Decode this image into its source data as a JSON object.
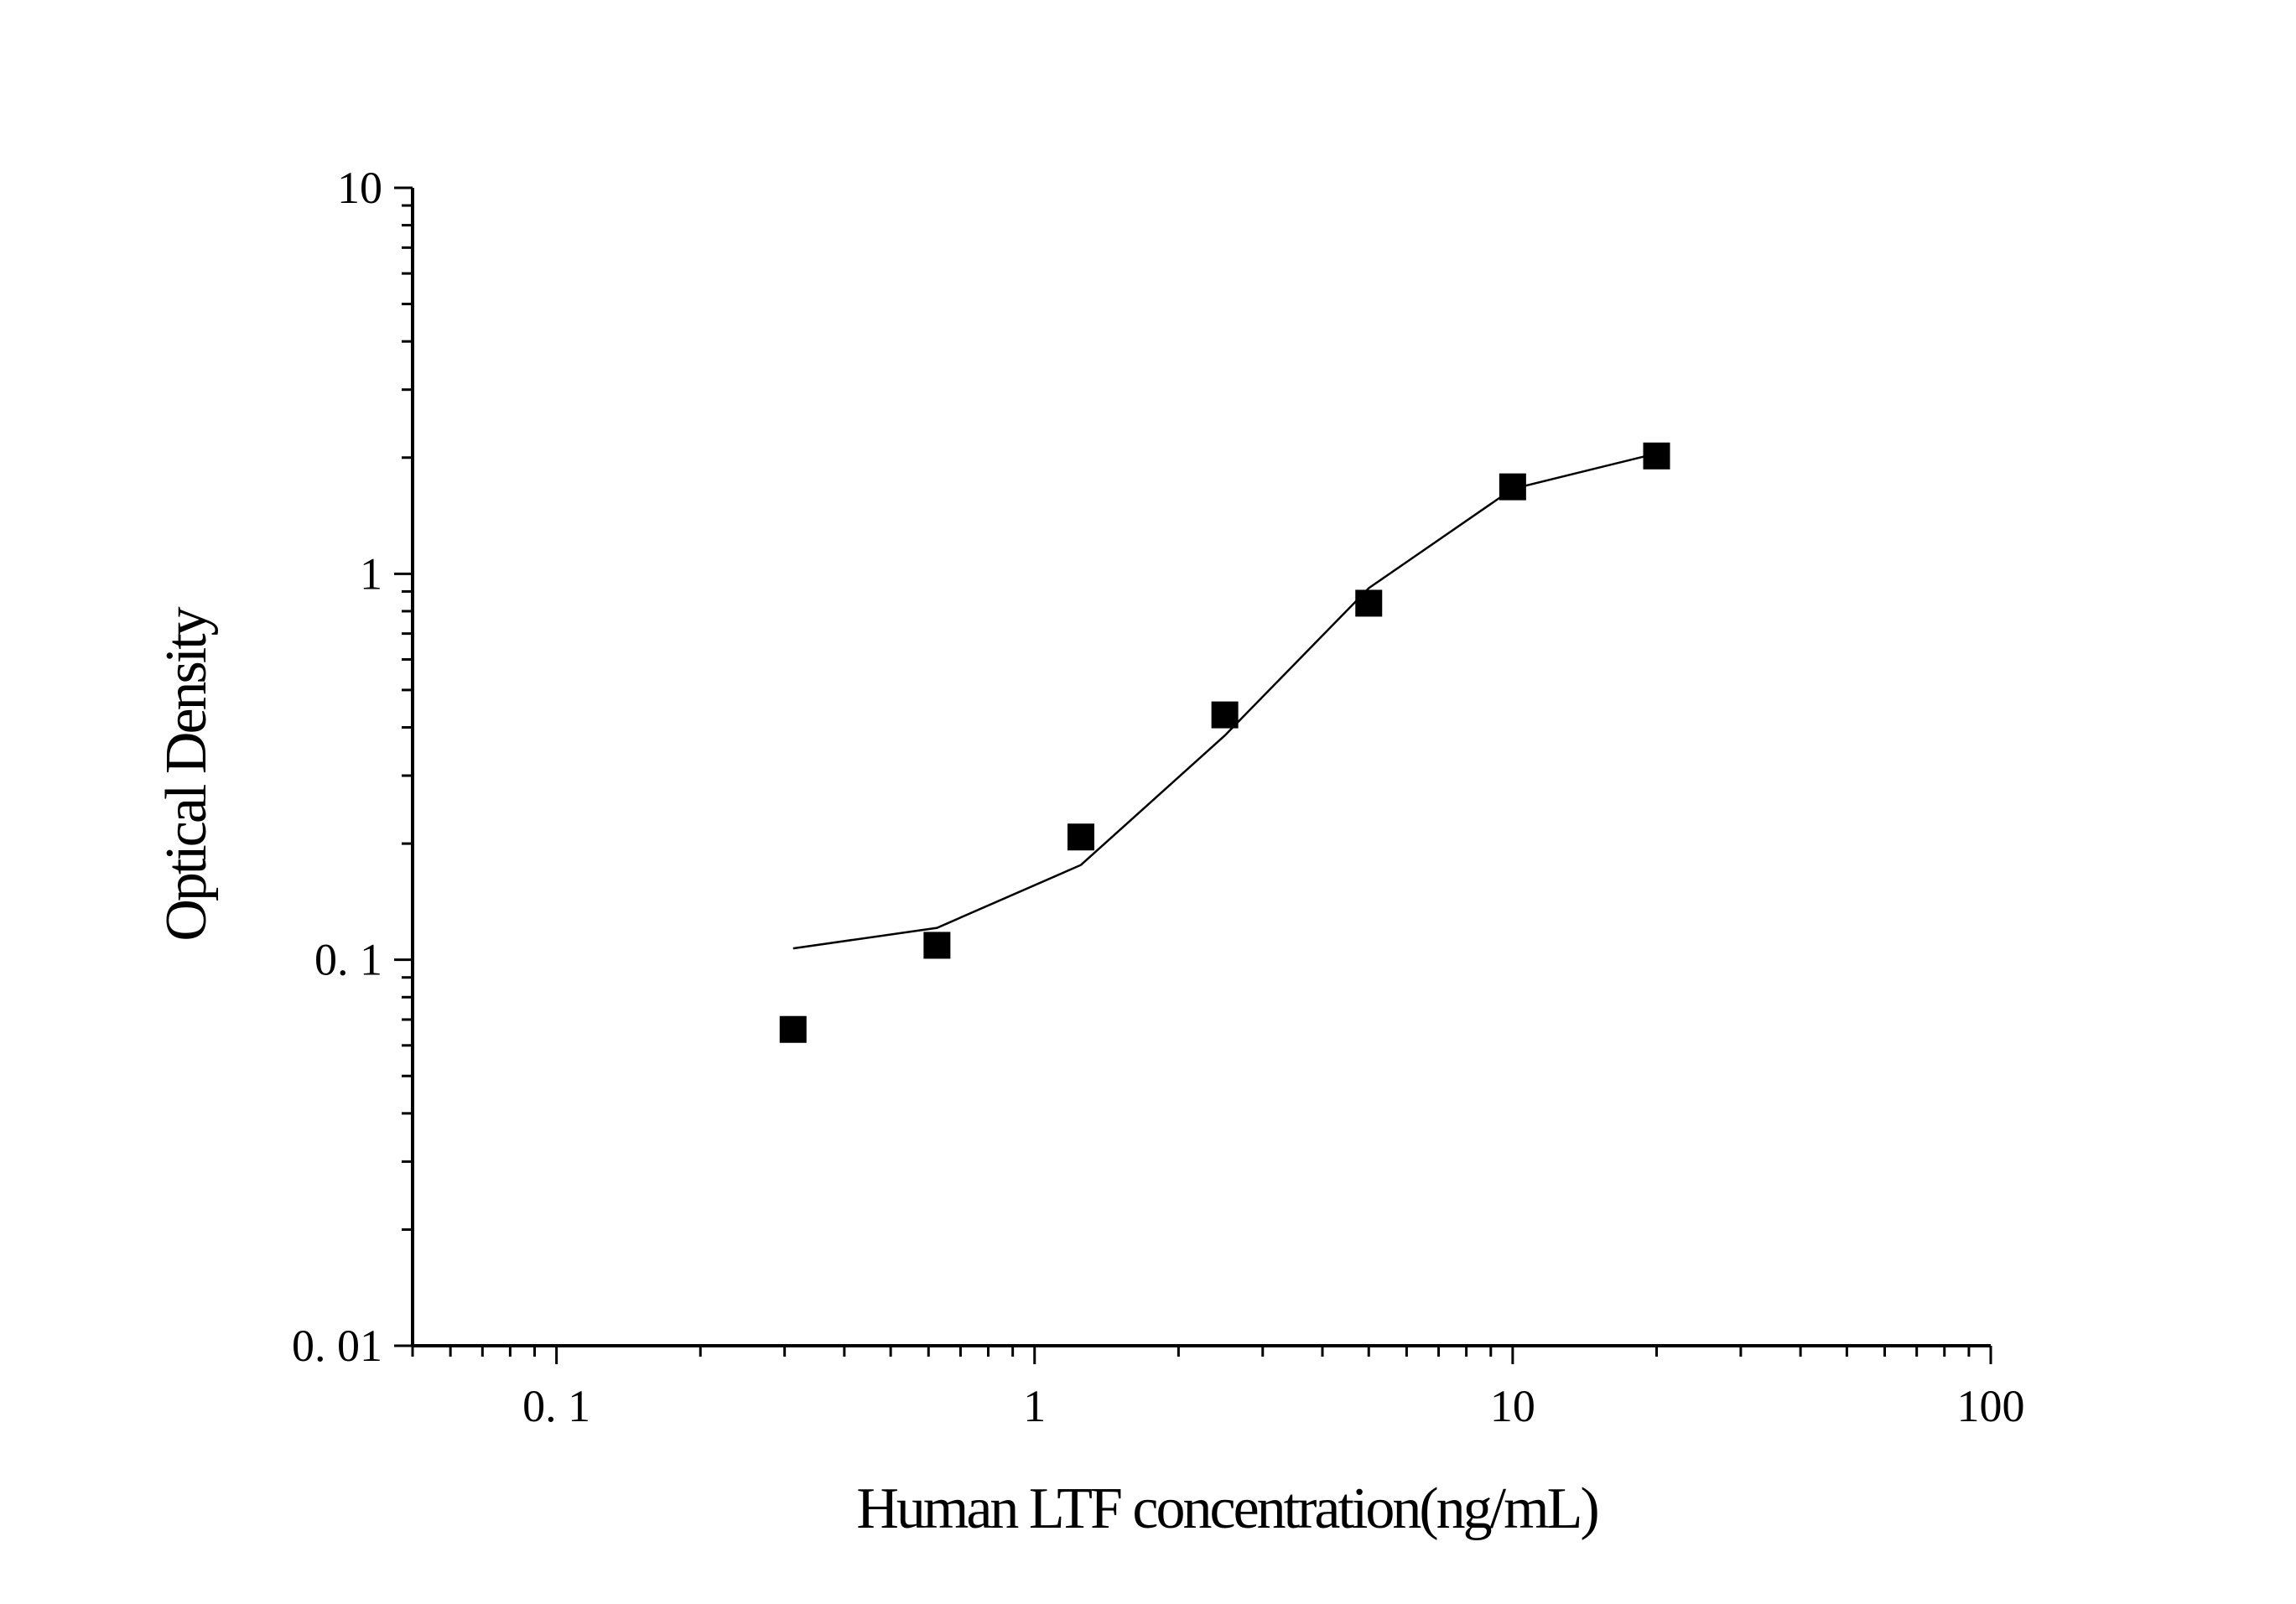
{
  "chart_data": {
    "type": "scatter",
    "title": "",
    "xlabel": "Human LTF concentration(ng/mL)",
    "ylabel": "Optical Density",
    "x_scale": "log",
    "y_scale": "log",
    "xlim": [
      0.05,
      100
    ],
    "ylim": [
      0.01,
      10
    ],
    "x_ticks": [
      {
        "value": 0.1,
        "label": "0. 1"
      },
      {
        "value": 1,
        "label": "1"
      },
      {
        "value": 10,
        "label": "10"
      },
      {
        "value": 100,
        "label": "100"
      }
    ],
    "y_ticks": [
      {
        "value": 0.01,
        "label": "0. 01"
      },
      {
        "value": 0.1,
        "label": "0. 1"
      },
      {
        "value": 1,
        "label": "1"
      },
      {
        "value": 10,
        "label": "10"
      }
    ],
    "grid": false,
    "legend": "none",
    "series": [
      {
        "kind": "points",
        "marker": "square",
        "x": [
          0.3125,
          0.625,
          1.25,
          2.5,
          5,
          10,
          20
        ],
        "y": [
          0.066,
          0.109,
          0.208,
          0.431,
          0.839,
          1.68,
          2.02
        ]
      },
      {
        "kind": "fit-line",
        "x": [
          0.3125,
          0.625,
          1.25,
          2.5,
          5,
          10,
          20
        ],
        "y": [
          0.107,
          0.121,
          0.176,
          0.381,
          0.918,
          1.66,
          2.05
        ]
      }
    ]
  }
}
